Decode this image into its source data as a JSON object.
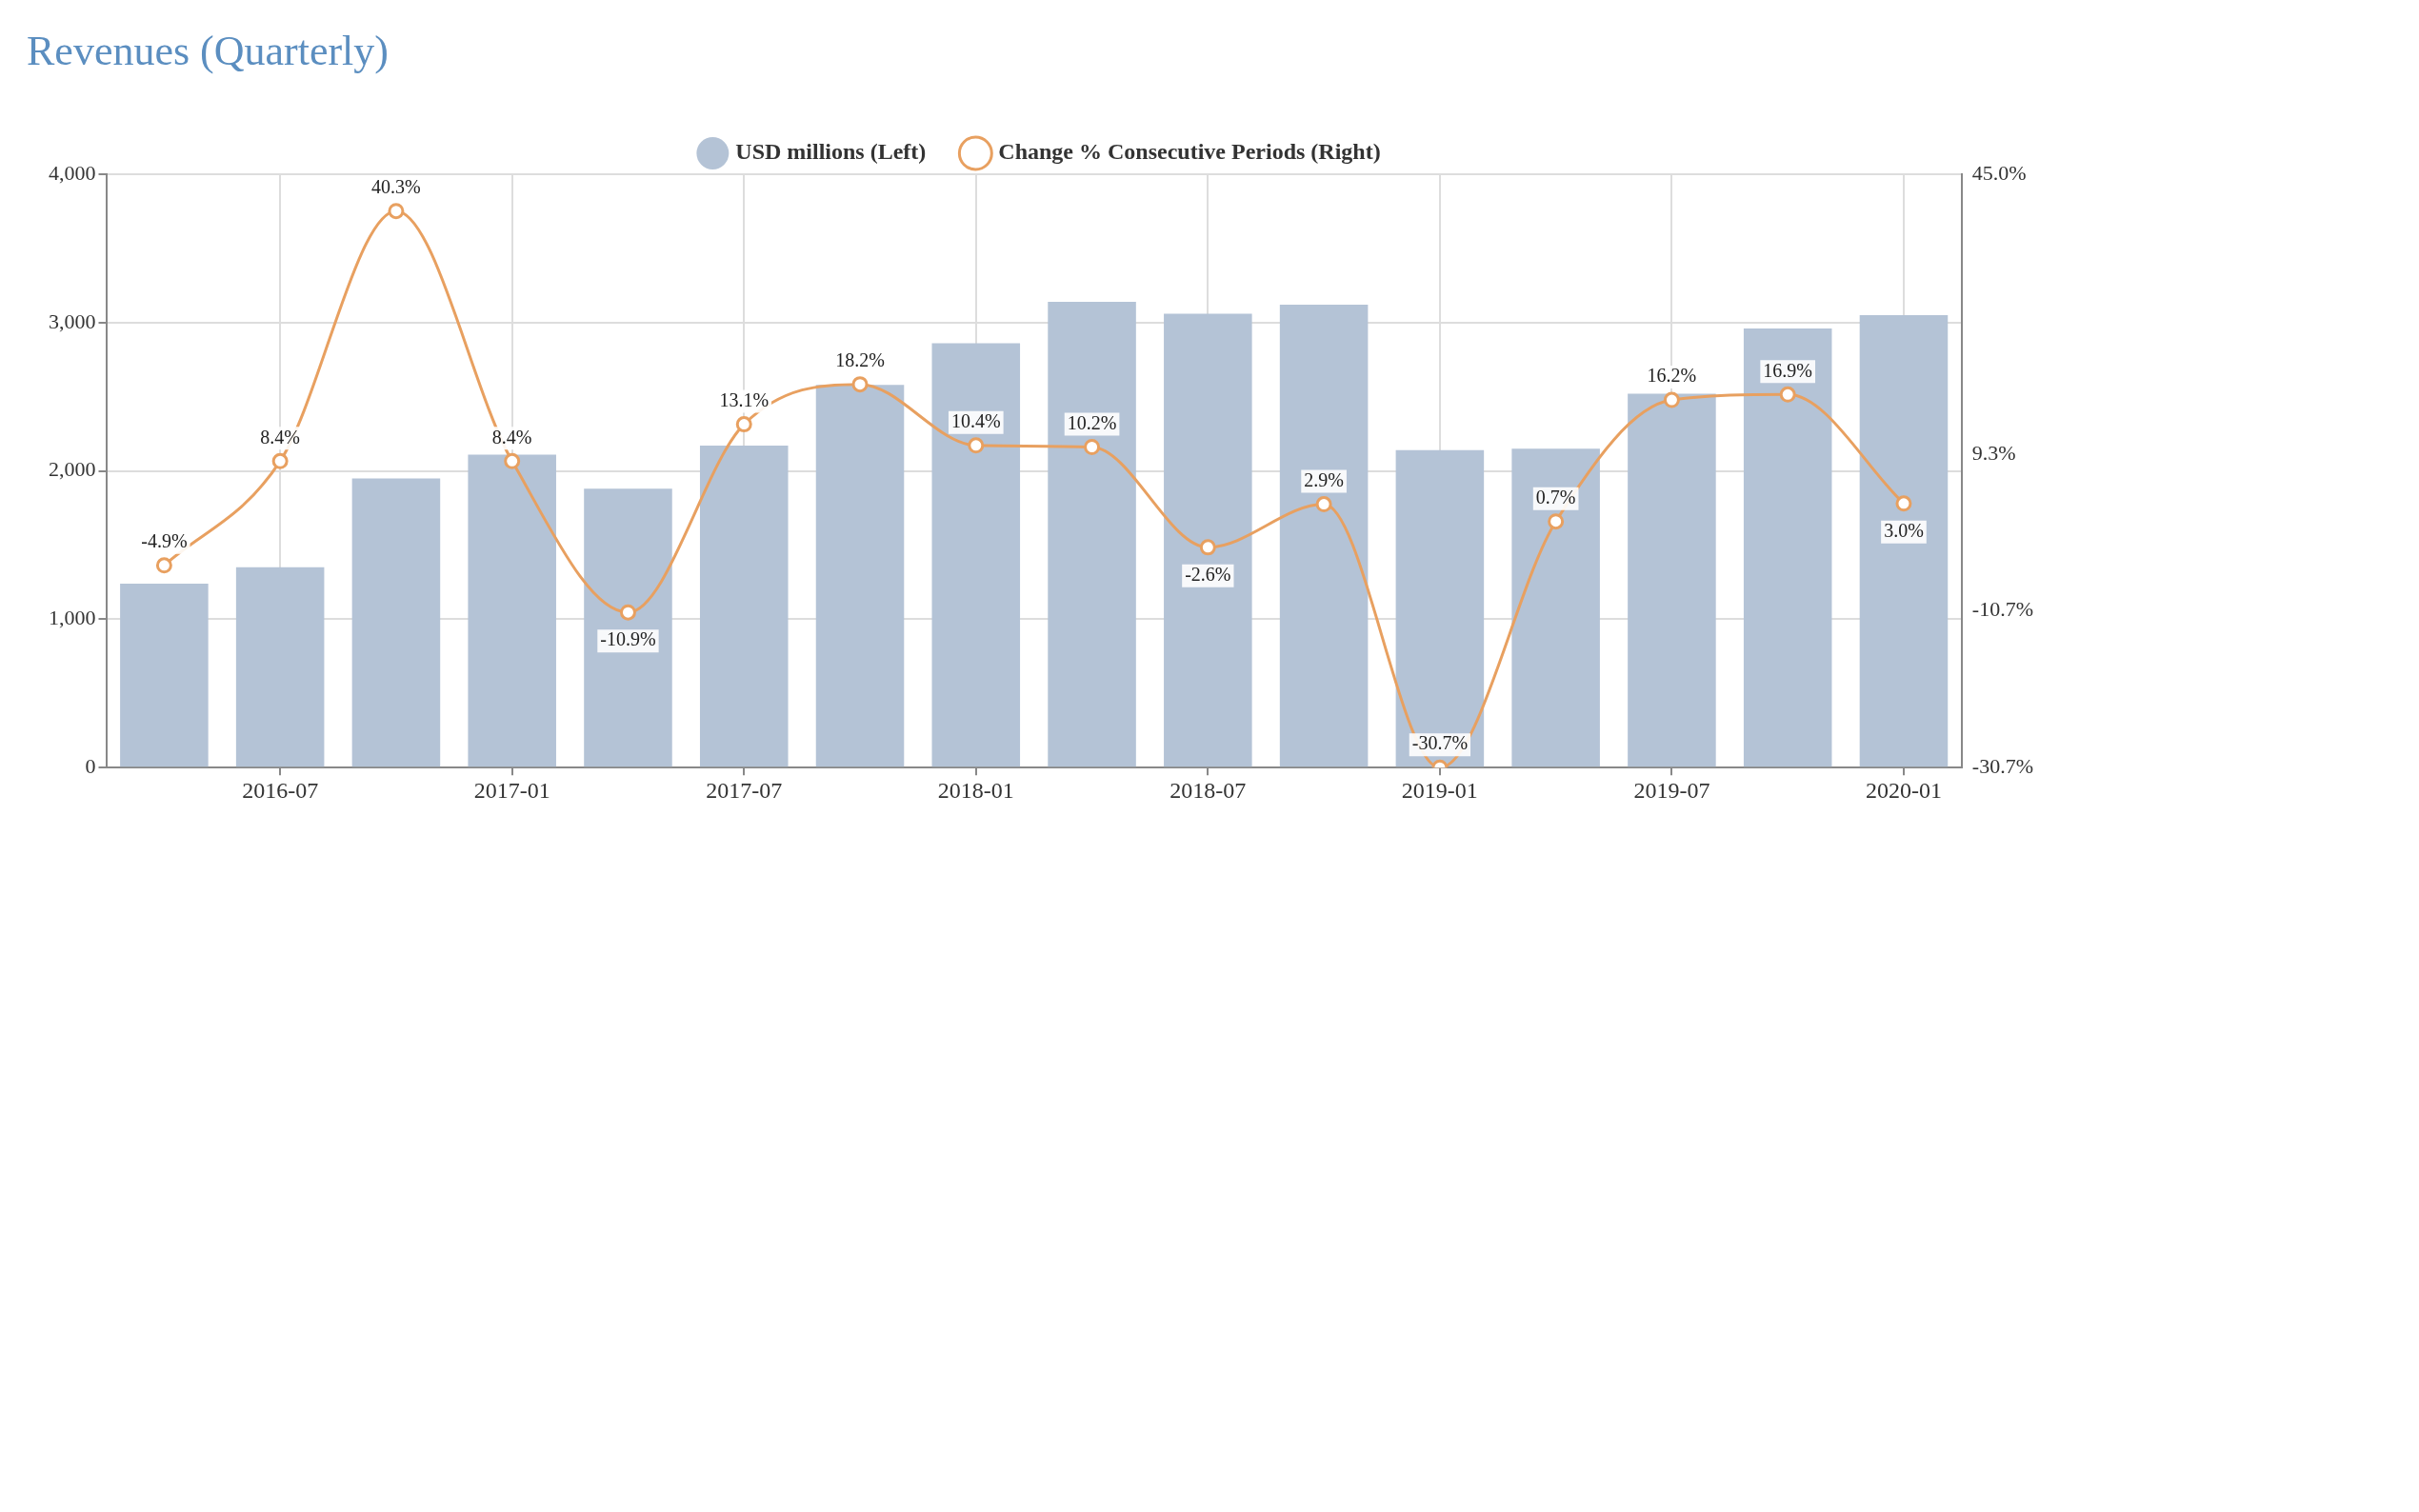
{
  "chart_data": {
    "type": "bar",
    "title": "Revenues (Quarterly)",
    "categories": [
      null,
      "2016-07",
      null,
      "2017-01",
      null,
      "2017-07",
      null,
      "2018-01",
      null,
      "2018-07",
      null,
      "2019-01",
      null,
      "2019-07",
      null,
      "2020-01"
    ],
    "series": [
      {
        "name": "USD millions (Left)",
        "color": "#b4c3d6",
        "values": [
          1240,
          1350,
          1950,
          2110,
          1880,
          2170,
          2580,
          2860,
          3140,
          3060,
          3120,
          2140,
          2150,
          2520,
          2960,
          3050
        ]
      },
      {
        "name": "Change % Consecutive Periods (Right)",
        "type": "line",
        "axis": "y2",
        "color": "#e8a060",
        "marker": "circle",
        "values": [
          -4.9,
          8.4,
          40.3,
          8.4,
          -10.9,
          13.1,
          18.2,
          10.4,
          10.2,
          -2.6,
          2.9,
          -30.7,
          0.7,
          16.2,
          16.9,
          3.0
        ],
        "value_labels": [
          "-4.9%",
          "8.4%",
          "40.3%",
          "8.4%",
          "-10.9%",
          "13.1%",
          "18.2%",
          "10.4%",
          "10.2%",
          "-2.6%",
          "2.9%",
          "-30.7%",
          "0.7%",
          "16.2%",
          "16.9%",
          "3.0%"
        ]
      }
    ],
    "ylim": [
      0,
      4000
    ],
    "yticks": [
      0,
      {
        "value": 1000,
        "label": "1,000"
      },
      {
        "value": 2000,
        "label": "2,000"
      },
      {
        "value": 3000,
        "label": "3,000"
      },
      {
        "value": 4000,
        "label": "4,000"
      }
    ],
    "y2lim": [
      -30.7,
      45.0
    ],
    "y2ticks": [
      {
        "value": -30.7,
        "label": "-30.7%"
      },
      {
        "value": -10.7,
        "label": "-10.7%"
      },
      {
        "value": 9.3,
        "label": "9.3%"
      },
      {
        "value": 45.0,
        "label": "45.0%"
      }
    ],
    "grid": true,
    "legend": "top"
  }
}
